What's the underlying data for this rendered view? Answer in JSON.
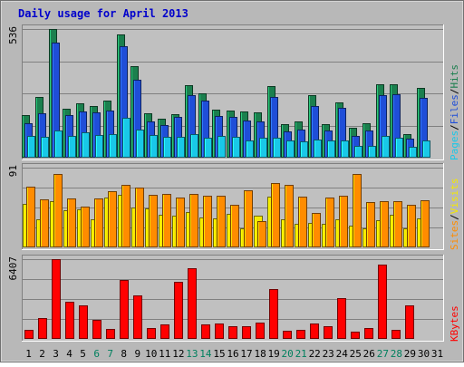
{
  "chart_data": {
    "type": "bar",
    "title": "Daily usage for April 2013",
    "categories": [
      "1",
      "2",
      "3",
      "4",
      "5",
      "6",
      "7",
      "8",
      "9",
      "10",
      "11",
      "12",
      "13",
      "14",
      "15",
      "16",
      "17",
      "18",
      "19",
      "20",
      "21",
      "22",
      "23",
      "24",
      "25",
      "26",
      "27",
      "28",
      "29",
      "30",
      "31"
    ],
    "weekend_days": [
      "6",
      "7",
      "13",
      "14",
      "20",
      "21",
      "27",
      "28"
    ],
    "panels": [
      {
        "id": "hits-files-pages",
        "max_label": "536",
        "ylim": [
          0,
          536
        ],
        "series": [
          {
            "name": "Hits",
            "color": "#1b7f4e",
            "values": [
              178,
              254,
              536,
              204,
              227,
              216,
              238,
              515,
              382,
              185,
              164,
              180,
              302,
              268,
              201,
              197,
              193,
              187,
              298,
              140,
              150,
              260,
              138,
              232,
              124,
              145,
              304,
              304,
              98,
              292,
              0
            ]
          },
          {
            "name": "Files",
            "color": "#1f4ed8",
            "values": [
              143,
              184,
              478,
              179,
              194,
              190,
              197,
              465,
              324,
              151,
              134,
              168,
              259,
              236,
              175,
              168,
              155,
              150,
              254,
              110,
              116,
              214,
              113,
              208,
              92,
              113,
              260,
              265,
              80,
              251,
              0
            ]
          },
          {
            "name": "Pages",
            "color": "#19c8e8",
            "values": [
              89,
              86,
              115,
              92,
              107,
              94,
              98,
              167,
              117,
              94,
              86,
              86,
              98,
              84,
              92,
              88,
              73,
              84,
              82,
              70,
              67,
              75,
              70,
              70,
              50,
              48,
              92,
              82,
              46,
              70,
              0
            ]
          }
        ]
      },
      {
        "id": "visits-sites",
        "max_label": "91",
        "ylim": [
          0,
          91
        ],
        "series": [
          {
            "name": "Visits",
            "color": "#f5e800",
            "values": [
              50,
              32,
              53,
              42,
              43,
              32,
              57,
              60,
              45,
              44,
              37,
              36,
              40,
              34,
              33,
              38,
              22,
              36,
              58,
              32,
              27,
              28,
              27,
              32,
              25,
              22,
              31,
              37,
              22,
              33,
              0
            ]
          },
          {
            "name": "Sites",
            "color": "#ff8c00",
            "values": [
              69,
              55,
              84,
              56,
              47,
              56,
              64,
              71,
              68,
              60,
              61,
              57,
              61,
              59,
              59,
              49,
              65,
              30,
              73,
              71,
              58,
              39,
              57,
              59,
              84,
              52,
              53,
              53,
              49,
              54,
              0
            ]
          }
        ]
      },
      {
        "id": "kbytes",
        "max_label": "6407",
        "ylim": [
          0,
          6407
        ],
        "series": [
          {
            "name": "KBytes",
            "color": "#ff0000",
            "values": [
              700,
              1700,
              6407,
              3000,
              2700,
              1550,
              800,
              4700,
              3500,
              850,
              1150,
              4600,
              5700,
              1150,
              1250,
              1050,
              1050,
              1300,
              4000,
              650,
              750,
              1250,
              1050,
              3300,
              600,
              850,
              6000,
              750,
              2700,
              0,
              0
            ]
          }
        ]
      }
    ],
    "right_labels": [
      {
        "panel": "hits-files-pages",
        "parts": [
          {
            "text": "Pages",
            "color": "#19c8e8"
          },
          {
            "text": "Files",
            "color": "#1f4ed8"
          },
          {
            "text": "Hits",
            "color": "#1b7f4e"
          }
        ]
      },
      {
        "panel": "visits-sites",
        "parts": [
          {
            "text": "Sites",
            "color": "#ff8c00"
          },
          {
            "text": "Visits",
            "color": "#f5e800"
          }
        ]
      },
      {
        "panel": "kbytes",
        "parts": [
          {
            "text": "KBytes",
            "color": "#ff0000"
          }
        ]
      }
    ],
    "colors": {
      "title": "#0000cc",
      "weekday_label": "#000000",
      "weekend_label": "#00805e",
      "plot_bg": "#c0c0c0",
      "grid": "#808080"
    }
  }
}
